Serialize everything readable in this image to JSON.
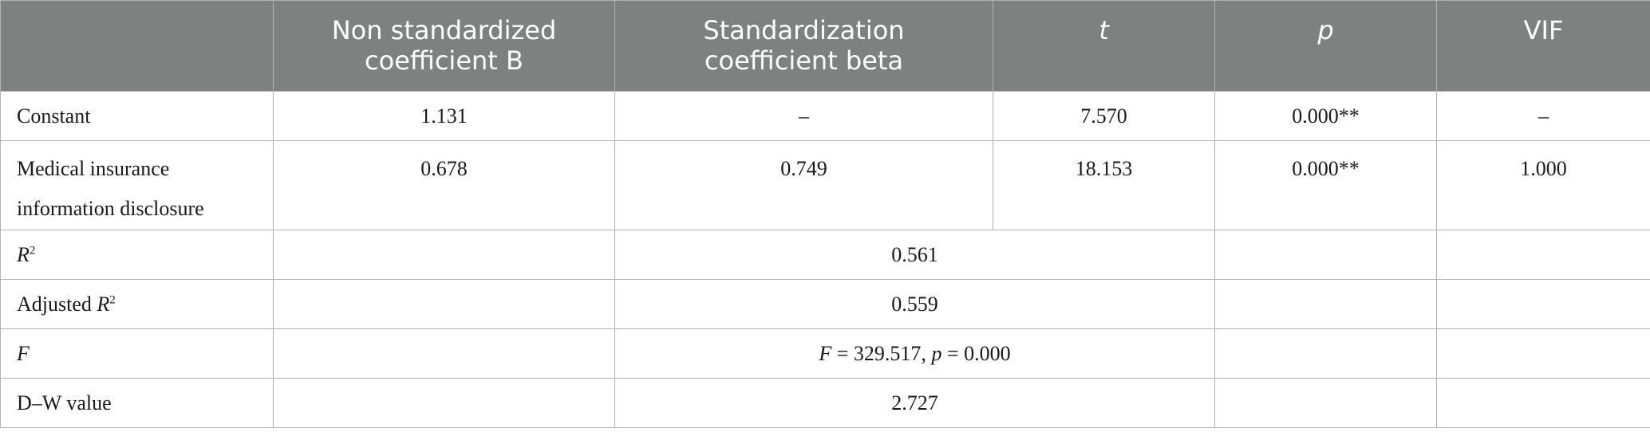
{
  "headers": {
    "col0": "",
    "col1": "Non standardized coefficient B",
    "col2": "Standardization coefficient beta",
    "col3": "t",
    "col4": "p",
    "col5": "VIF"
  },
  "rows": [
    {
      "label": "Constant",
      "b": "1.131",
      "beta": "–",
      "t": "7.570",
      "p": "0.000**",
      "vif": "–"
    },
    {
      "label": "Medical insurance information disclosure",
      "b": "0.678",
      "beta": "0.749",
      "t": "18.153",
      "p": "0.000**",
      "vif": "1.000"
    }
  ],
  "summary": {
    "r2": {
      "label": "R",
      "sup": "2",
      "value": "0.561"
    },
    "adj_r2": {
      "label": "Adjusted ",
      "label_var": "R",
      "sup": "2",
      "value": "0.559"
    },
    "f": {
      "label": "F",
      "value_var1": "F",
      "value_mid": " = 329.517, ",
      "value_var2": "p",
      "value_end": " = 0.000"
    },
    "dw": {
      "label": "D–W value",
      "value": "2.727"
    }
  }
}
